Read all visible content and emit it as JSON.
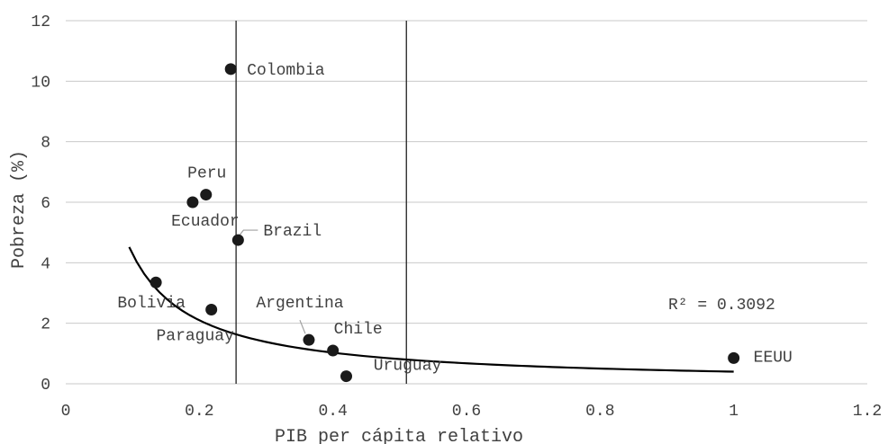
{
  "chart_data": {
    "type": "scatter",
    "title": "",
    "xlabel": "PIB per cápita relativo",
    "ylabel": "Pobreza (%)",
    "xlim": [
      0,
      1.2
    ],
    "ylim": [
      0,
      12
    ],
    "x_ticks": [
      "0",
      "0.2",
      "0.4",
      "0.6",
      "0.8",
      "1",
      "1.2"
    ],
    "y_ticks": [
      "0",
      "2",
      "4",
      "6",
      "8",
      "10",
      "12"
    ],
    "grid": "horizontal",
    "points": [
      {
        "label": "Colombia",
        "x": 0.247,
        "y": 10.4
      },
      {
        "label": "Peru",
        "x": 0.21,
        "y": 6.25
      },
      {
        "label": "Ecuador",
        "x": 0.19,
        "y": 6.0
      },
      {
        "label": "Brazil",
        "x": 0.258,
        "y": 4.75
      },
      {
        "label": "Bolivia",
        "x": 0.135,
        "y": 3.35
      },
      {
        "label": "Paraguay",
        "x": 0.218,
        "y": 2.45
      },
      {
        "label": "Argentina",
        "x": 0.364,
        "y": 1.45
      },
      {
        "label": "Chile",
        "x": 0.4,
        "y": 1.1
      },
      {
        "label": "Uruguay",
        "x": 0.42,
        "y": 0.25
      },
      {
        "label": "EEUU",
        "x": 1.0,
        "y": 0.85
      }
    ],
    "vertical_lines": [
      0.255,
      0.51
    ],
    "trendline": {
      "type": "power",
      "a": 0.4,
      "b": -1.03,
      "x_start": 0.095,
      "x_end": 1.0
    },
    "annotation": "R² = 0.3092",
    "colors": {
      "marker": "#1a1a1a",
      "trend": "#000000",
      "grid": "#c9c9c9",
      "text": "#404040"
    }
  }
}
